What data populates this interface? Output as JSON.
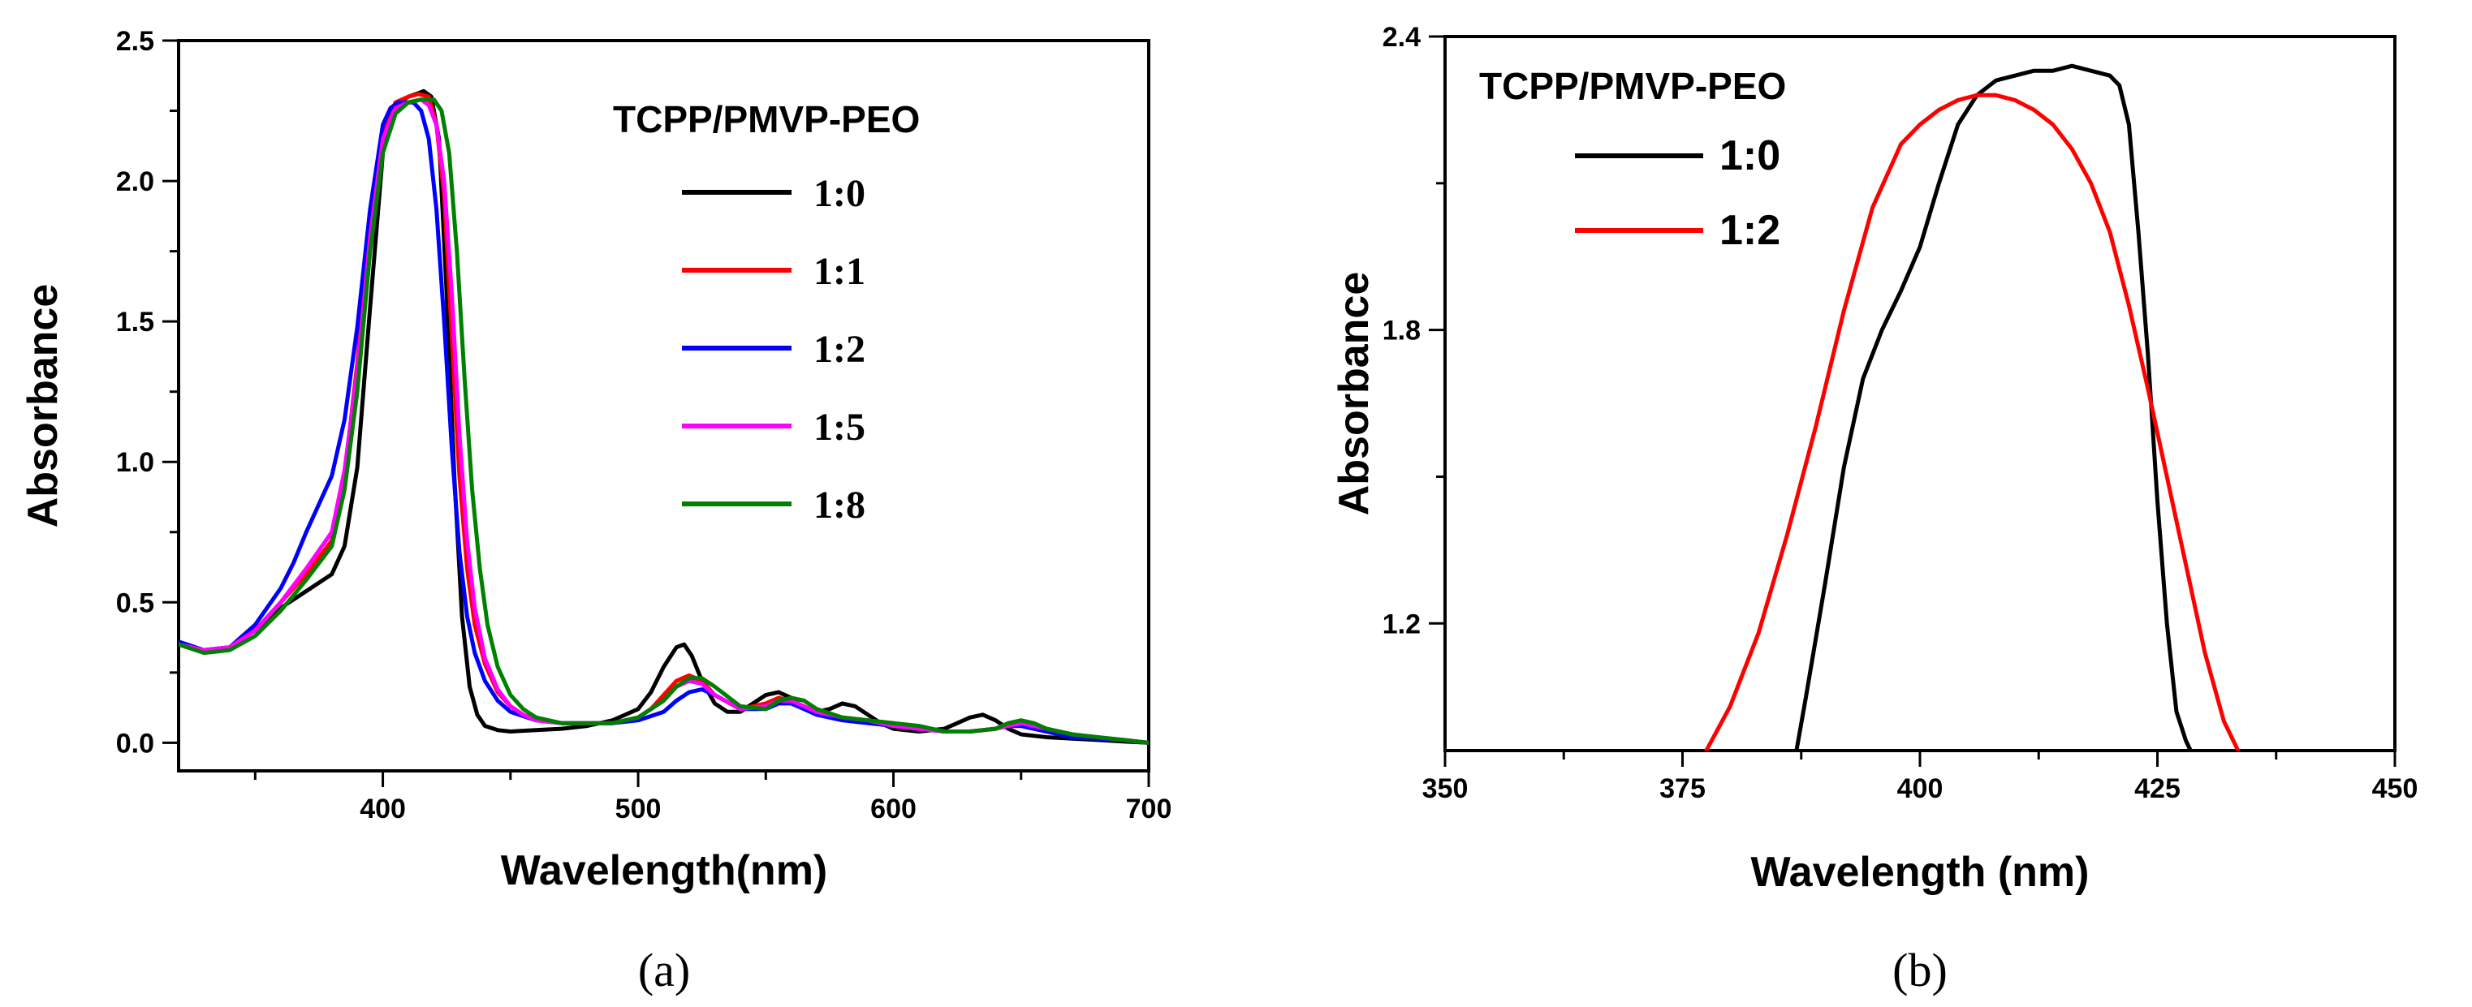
{
  "chart_data": [
    {
      "id": "a",
      "type": "line",
      "caption": "(a)",
      "title": "",
      "xlabel": "Wavelength(nm)",
      "ylabel": "Absorbance",
      "xlim": [
        320,
        700
      ],
      "ylim": [
        -0.1,
        2.5
      ],
      "xticks": [
        400,
        500,
        600,
        700
      ],
      "xtick_labels": [
        "400",
        "500",
        "600",
        "700"
      ],
      "yticks": [
        0.0,
        0.5,
        1.0,
        1.5,
        2.0,
        2.5
      ],
      "ytick_labels": [
        "0.0",
        "0.5",
        "1.0",
        "1.5",
        "2.0",
        "2.5"
      ],
      "grid": false,
      "legend_title": "TCPP/PMVP-PEO",
      "legend_position": "top-right",
      "series": [
        {
          "name": "1:0",
          "color": "#000000",
          "x": [
            320,
            330,
            340,
            350,
            360,
            370,
            380,
            385,
            390,
            395,
            400,
            405,
            410,
            413,
            416,
            419,
            422,
            425,
            428,
            431,
            434,
            437,
            440,
            445,
            450,
            460,
            470,
            480,
            490,
            500,
            505,
            510,
            515,
            518,
            521,
            525,
            530,
            535,
            540,
            545,
            550,
            555,
            560,
            565,
            570,
            575,
            580,
            585,
            590,
            595,
            600,
            610,
            620,
            625,
            630,
            635,
            640,
            645,
            650,
            660,
            670,
            680,
            690,
            700
          ],
          "y": [
            0.35,
            0.33,
            0.34,
            0.4,
            0.48,
            0.54,
            0.6,
            0.7,
            0.98,
            1.55,
            2.1,
            2.27,
            2.3,
            2.31,
            2.32,
            2.3,
            2.15,
            1.6,
            0.95,
            0.45,
            0.2,
            0.1,
            0.06,
            0.045,
            0.04,
            0.045,
            0.05,
            0.06,
            0.08,
            0.12,
            0.18,
            0.27,
            0.34,
            0.35,
            0.31,
            0.22,
            0.14,
            0.11,
            0.11,
            0.14,
            0.17,
            0.18,
            0.16,
            0.12,
            0.11,
            0.12,
            0.14,
            0.13,
            0.1,
            0.07,
            0.05,
            0.04,
            0.05,
            0.07,
            0.09,
            0.1,
            0.08,
            0.05,
            0.03,
            0.02,
            0.015,
            0.01,
            0.005,
            0.0
          ]
        },
        {
          "name": "1:1",
          "color": "#ff0000",
          "x": [
            320,
            330,
            340,
            350,
            360,
            370,
            380,
            385,
            390,
            395,
            400,
            405,
            410,
            414,
            418,
            421,
            424,
            427,
            430,
            433,
            436,
            440,
            445,
            450,
            455,
            460,
            470,
            480,
            490,
            500,
            505,
            510,
            515,
            520,
            525,
            530,
            540,
            550,
            555,
            560,
            565,
            570,
            580,
            590,
            600,
            610,
            620,
            630,
            640,
            645,
            650,
            655,
            660,
            670,
            680,
            690,
            700
          ],
          "y": [
            0.35,
            0.33,
            0.34,
            0.4,
            0.5,
            0.6,
            0.72,
            0.95,
            1.35,
            1.85,
            2.18,
            2.28,
            2.3,
            2.31,
            2.3,
            2.2,
            1.95,
            1.45,
            0.95,
            0.62,
            0.42,
            0.28,
            0.18,
            0.13,
            0.1,
            0.08,
            0.07,
            0.07,
            0.07,
            0.09,
            0.12,
            0.17,
            0.22,
            0.24,
            0.22,
            0.17,
            0.12,
            0.14,
            0.16,
            0.15,
            0.12,
            0.1,
            0.09,
            0.08,
            0.07,
            0.05,
            0.04,
            0.04,
            0.05,
            0.06,
            0.06,
            0.05,
            0.04,
            0.02,
            0.015,
            0.01,
            0.0
          ]
        },
        {
          "name": "1:2",
          "color": "#0000ff",
          "x": [
            320,
            330,
            340,
            350,
            360,
            365,
            370,
            380,
            385,
            390,
            395,
            400,
            403,
            406,
            409,
            412,
            415,
            418,
            421,
            424,
            427,
            430,
            433,
            436,
            440,
            445,
            450,
            460,
            470,
            480,
            490,
            500,
            510,
            515,
            520,
            525,
            530,
            540,
            550,
            555,
            560,
            565,
            570,
            580,
            590,
            600,
            610,
            620,
            630,
            640,
            645,
            650,
            655,
            660,
            670,
            680,
            690,
            700
          ],
          "y": [
            0.36,
            0.33,
            0.34,
            0.42,
            0.55,
            0.64,
            0.75,
            0.95,
            1.15,
            1.48,
            1.9,
            2.2,
            2.26,
            2.28,
            2.28,
            2.28,
            2.25,
            2.15,
            1.9,
            1.5,
            1.05,
            0.68,
            0.45,
            0.32,
            0.22,
            0.15,
            0.11,
            0.08,
            0.07,
            0.07,
            0.07,
            0.08,
            0.11,
            0.15,
            0.18,
            0.19,
            0.17,
            0.12,
            0.12,
            0.14,
            0.14,
            0.12,
            0.1,
            0.08,
            0.07,
            0.06,
            0.05,
            0.04,
            0.04,
            0.05,
            0.06,
            0.06,
            0.05,
            0.04,
            0.02,
            0.015,
            0.01,
            0.0
          ]
        },
        {
          "name": "1:5",
          "color": "#ff00ff",
          "x": [
            320,
            330,
            340,
            350,
            360,
            370,
            380,
            385,
            390,
            395,
            400,
            405,
            410,
            415,
            418,
            421,
            424,
            427,
            430,
            433,
            436,
            440,
            445,
            450,
            455,
            460,
            470,
            480,
            490,
            500,
            510,
            515,
            520,
            525,
            530,
            540,
            550,
            555,
            560,
            565,
            570,
            580,
            590,
            600,
            610,
            620,
            630,
            640,
            645,
            650,
            655,
            660,
            670,
            680,
            690,
            700
          ],
          "y": [
            0.35,
            0.33,
            0.34,
            0.4,
            0.5,
            0.62,
            0.75,
            0.97,
            1.32,
            1.8,
            2.15,
            2.26,
            2.28,
            2.29,
            2.27,
            2.2,
            2.0,
            1.6,
            1.1,
            0.72,
            0.48,
            0.3,
            0.19,
            0.13,
            0.1,
            0.08,
            0.07,
            0.07,
            0.07,
            0.09,
            0.15,
            0.2,
            0.22,
            0.21,
            0.17,
            0.12,
            0.13,
            0.15,
            0.15,
            0.13,
            0.11,
            0.09,
            0.08,
            0.06,
            0.05,
            0.04,
            0.04,
            0.05,
            0.06,
            0.07,
            0.06,
            0.05,
            0.03,
            0.02,
            0.01,
            0.0
          ]
        },
        {
          "name": "1:8",
          "color": "#008000",
          "x": [
            320,
            330,
            340,
            350,
            360,
            370,
            380,
            385,
            390,
            395,
            400,
            405,
            410,
            415,
            420,
            423,
            426,
            429,
            432,
            435,
            438,
            441,
            445,
            450,
            455,
            460,
            470,
            480,
            490,
            500,
            510,
            515,
            520,
            525,
            530,
            540,
            550,
            555,
            560,
            565,
            570,
            580,
            590,
            600,
            610,
            620,
            630,
            640,
            645,
            650,
            655,
            660,
            670,
            680,
            690,
            700
          ],
          "y": [
            0.35,
            0.32,
            0.33,
            0.38,
            0.47,
            0.58,
            0.7,
            0.9,
            1.25,
            1.75,
            2.1,
            2.24,
            2.28,
            2.29,
            2.29,
            2.25,
            2.1,
            1.75,
            1.3,
            0.9,
            0.62,
            0.42,
            0.27,
            0.17,
            0.12,
            0.09,
            0.07,
            0.07,
            0.07,
            0.09,
            0.15,
            0.2,
            0.23,
            0.23,
            0.2,
            0.13,
            0.12,
            0.15,
            0.16,
            0.15,
            0.12,
            0.09,
            0.08,
            0.07,
            0.06,
            0.04,
            0.04,
            0.05,
            0.07,
            0.08,
            0.07,
            0.05,
            0.03,
            0.02,
            0.01,
            0.0
          ]
        }
      ]
    },
    {
      "id": "b",
      "type": "line",
      "caption": "(b)",
      "title": "",
      "xlabel": "Wavelength (nm)",
      "ylabel": "Absorbance",
      "xlim": [
        350,
        450
      ],
      "ylim": [
        0.94,
        2.4
      ],
      "xticks": [
        350,
        375,
        400,
        425,
        450
      ],
      "xtick_labels": [
        "350",
        "375",
        "400",
        "425",
        "450"
      ],
      "yticks": [
        1.2,
        1.8,
        2.4
      ],
      "ytick_labels": [
        "1.2",
        "1.8",
        "2.4"
      ],
      "grid": false,
      "legend_title": "TCPP/PMVP-PEO",
      "legend_position": "top-left",
      "series": [
        {
          "name": "1:0",
          "color": "#000000",
          "x": [
            387,
            388,
            390,
            392,
            394,
            396,
            398,
            400,
            402,
            404,
            406,
            408,
            410,
            412,
            414,
            416,
            418,
            420,
            421,
            422,
            423,
            424,
            425,
            426,
            427,
            428,
            428.5
          ],
          "y": [
            0.94,
            1.05,
            1.28,
            1.52,
            1.7,
            1.8,
            1.88,
            1.97,
            2.1,
            2.22,
            2.28,
            2.31,
            2.32,
            2.33,
            2.33,
            2.34,
            2.33,
            2.32,
            2.3,
            2.22,
            2.0,
            1.75,
            1.45,
            1.2,
            1.02,
            0.96,
            0.94
          ]
        },
        {
          "name": "1:2",
          "color": "#ff0000",
          "x": [
            377.5,
            380,
            383,
            386,
            389,
            392,
            395,
            398,
            400,
            402,
            404,
            406,
            408,
            410,
            412,
            414,
            416,
            418,
            420,
            422,
            424,
            426,
            428,
            430,
            432,
            433.5
          ],
          "y": [
            0.94,
            1.03,
            1.18,
            1.38,
            1.6,
            1.84,
            2.05,
            2.18,
            2.22,
            2.25,
            2.27,
            2.28,
            2.28,
            2.27,
            2.25,
            2.22,
            2.17,
            2.1,
            2.0,
            1.85,
            1.68,
            1.5,
            1.32,
            1.14,
            1.0,
            0.94
          ]
        }
      ]
    }
  ]
}
